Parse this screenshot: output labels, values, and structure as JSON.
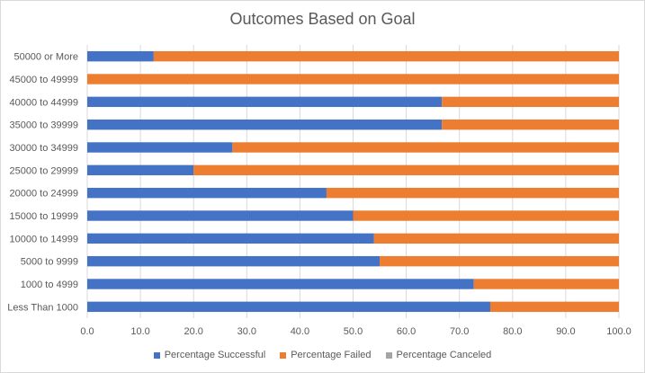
{
  "chart_data": {
    "type": "bar",
    "orientation": "horizontal",
    "stacked": true,
    "title": "Outcomes Based on Goal",
    "xlabel": "",
    "ylabel": "",
    "xlim": [
      0,
      100
    ],
    "x_ticks": [
      "0.0",
      "10.0",
      "20.0",
      "30.0",
      "40.0",
      "50.0",
      "60.0",
      "70.0",
      "80.0",
      "90.0",
      "100.0"
    ],
    "grid": true,
    "legend_position": "bottom",
    "categories": [
      "Less Than 1000",
      "1000 to 4999",
      "5000 to 9999",
      "10000 to 14999",
      "15000 to 19999",
      "20000 to 24999",
      "25000 to 29999",
      "30000 to 34999",
      "35000 to 39999",
      "40000 to 44999",
      "45000 to 49999",
      "50000 or More"
    ],
    "series": [
      {
        "name": "Percentage Successful",
        "color": "#4472c4",
        "values": [
          75.8,
          72.7,
          55.0,
          53.9,
          50.0,
          45.0,
          20.0,
          27.3,
          66.7,
          66.7,
          0.0,
          12.5
        ]
      },
      {
        "name": "Percentage Failed",
        "color": "#ed7d31",
        "values": [
          24.2,
          27.3,
          45.0,
          46.1,
          50.0,
          55.0,
          80.0,
          72.7,
          33.3,
          33.3,
          100.0,
          87.5
        ]
      },
      {
        "name": "Percentage Canceled",
        "color": "#a5a5a5",
        "values": [
          0,
          0,
          0,
          0,
          0,
          0,
          0,
          0,
          0,
          0,
          0,
          0
        ]
      }
    ]
  }
}
